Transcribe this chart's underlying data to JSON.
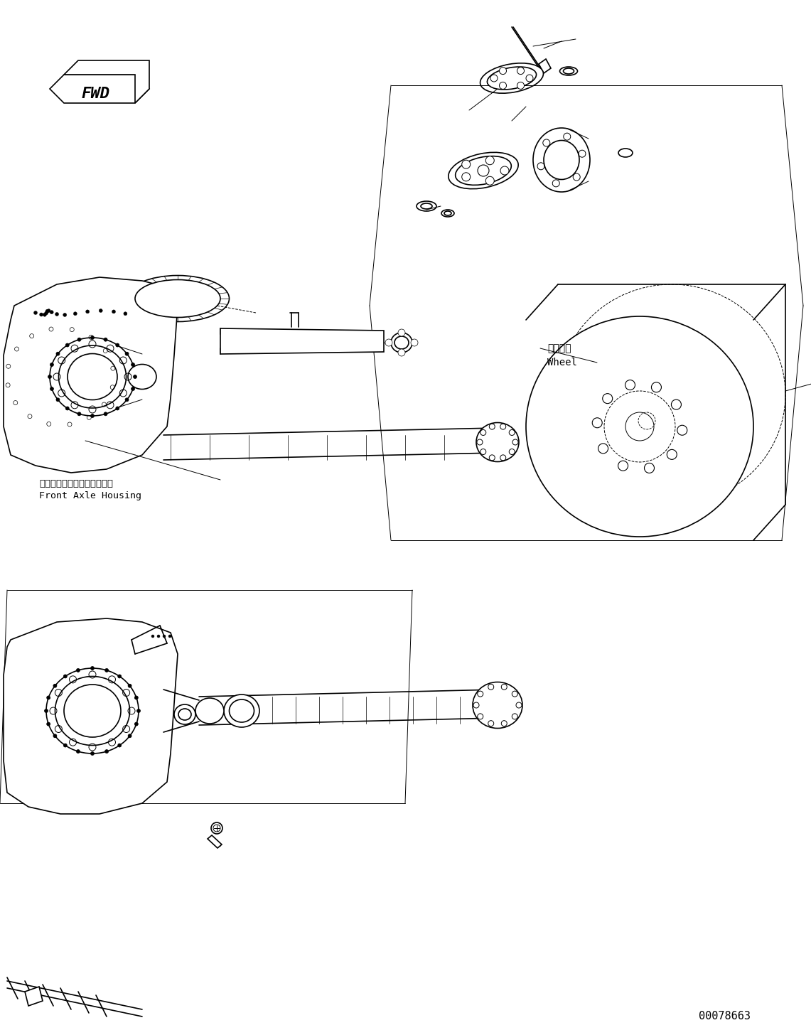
{
  "bg_color": "#ffffff",
  "line_color": "#000000",
  "fig_width": 11.41,
  "fig_height": 14.56,
  "dpi": 100,
  "part_number": "00078663",
  "label_front_axle_jp": "フロントアクスルハウジング",
  "label_front_axle_en": "Front Axle Housing",
  "label_wheel_jp": "ホイール",
  "label_wheel_en": "Wheel",
  "fwd_label": "FWD"
}
